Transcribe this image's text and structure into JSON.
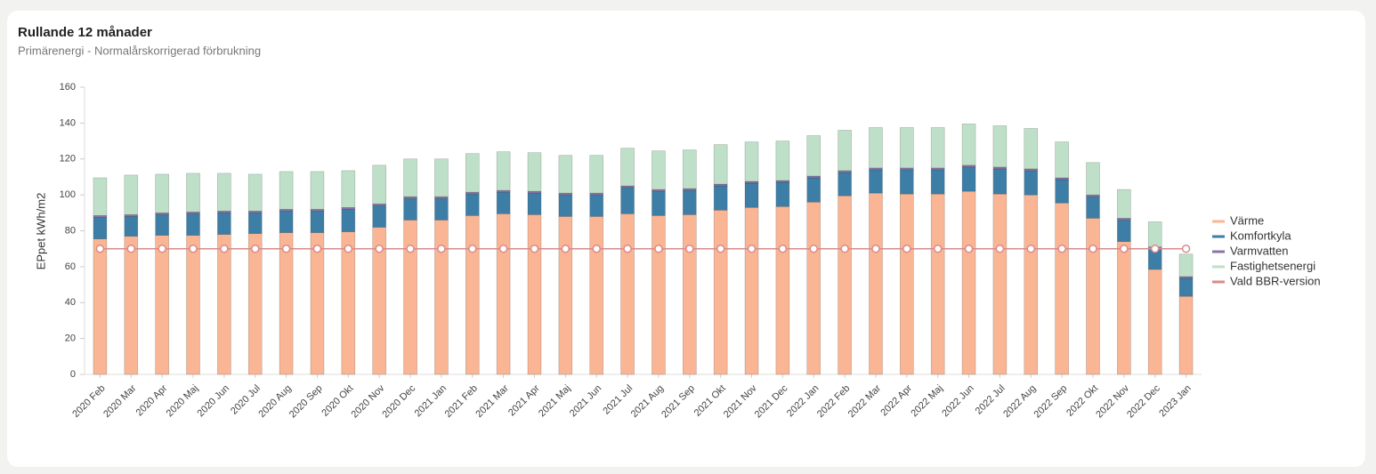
{
  "chart_data": {
    "type": "bar",
    "stacked": true,
    "title": "Rullande 12 månader",
    "subtitle": "Primärenergi - Normalårskorrigerad förbrukning",
    "y_label": "EPpet kWh/m2",
    "categories": [
      "2020 Feb",
      "2020 Mar",
      "2020 Apr",
      "2020 Maj",
      "2020 Jun",
      "2020 Jul",
      "2020 Aug",
      "2020 Sep",
      "2020 Okt",
      "2020 Nov",
      "2020 Dec",
      "2021 Jan",
      "2021 Feb",
      "2021 Mar",
      "2021 Apr",
      "2021 Maj",
      "2021 Jun",
      "2021 Jul",
      "2021 Aug",
      "2021 Sep",
      "2021 Okt",
      "2021 Nov",
      "2021 Dec",
      "2022 Jan",
      "2022 Feb",
      "2022 Mar",
      "2022 Apr",
      "2022 Maj",
      "2022 Jun",
      "2022 Jul",
      "2022 Aug",
      "2022 Sep",
      "2022 Okt",
      "2022 Nov",
      "2022 Dec",
      "2023 Jan"
    ],
    "series": [
      {
        "name": "Värme",
        "color": "#f9b594",
        "values": [
          75.5,
          77,
          77.5,
          77.5,
          78,
          78.5,
          79,
          79,
          79.5,
          82,
          86,
          86,
          88.5,
          89.5,
          89,
          88,
          88,
          89.5,
          88.5,
          89,
          91.5,
          93,
          93.5,
          96,
          99.5,
          101,
          100.5,
          100.5,
          102,
          100.5,
          100,
          95.5,
          87,
          74,
          58.5,
          43.5
        ]
      },
      {
        "name": "Komfortkyla",
        "color": "#3d7ea6",
        "values": [
          12,
          11,
          11.5,
          12,
          12,
          11.5,
          12,
          12,
          12.5,
          12,
          12,
          12,
          12,
          12,
          12,
          12,
          12,
          14.5,
          13.5,
          13.5,
          13.5,
          13.5,
          13.5,
          13.5,
          13,
          13,
          13.5,
          13.5,
          13.5,
          14,
          13.5,
          13,
          12,
          12,
          11.5,
          10
        ]
      },
      {
        "name": "Varmvatten",
        "color": "#8b74a8",
        "values": [
          1,
          1,
          1,
          1,
          1,
          1,
          1,
          1,
          1,
          1,
          1,
          1,
          1,
          1,
          1,
          1,
          1,
          1,
          1,
          1,
          1,
          1,
          1,
          1,
          1,
          1,
          1,
          1,
          1,
          1,
          1,
          1,
          1,
          1,
          1,
          1
        ]
      },
      {
        "name": "Fastighetsenergi",
        "color": "#bfe0c8",
        "values": [
          21,
          22,
          21.5,
          21.5,
          21,
          20.5,
          21,
          21,
          20.5,
          21.5,
          21,
          21,
          21.5,
          21.5,
          21.5,
          21,
          21,
          21,
          21.5,
          21.5,
          22,
          22,
          22,
          22.5,
          22.5,
          22.5,
          22.5,
          22.5,
          23,
          23,
          22.5,
          20,
          18,
          16,
          14,
          12.5
        ]
      },
      {
        "name": "Vald BBR-version",
        "color": "#d98b8b",
        "type": "line",
        "values": [
          70,
          70,
          70,
          70,
          70,
          70,
          70,
          70,
          70,
          70,
          70,
          70,
          70,
          70,
          70,
          70,
          70,
          70,
          70,
          70,
          70,
          70,
          70,
          70,
          70,
          70,
          70,
          70,
          70,
          70,
          70,
          70,
          70,
          70,
          70,
          70
        ]
      }
    ],
    "ylim": [
      0,
      160
    ],
    "yticks": [
      0,
      20,
      40,
      60,
      80,
      100,
      120,
      140,
      160
    ],
    "grid": false,
    "legend": "right"
  }
}
